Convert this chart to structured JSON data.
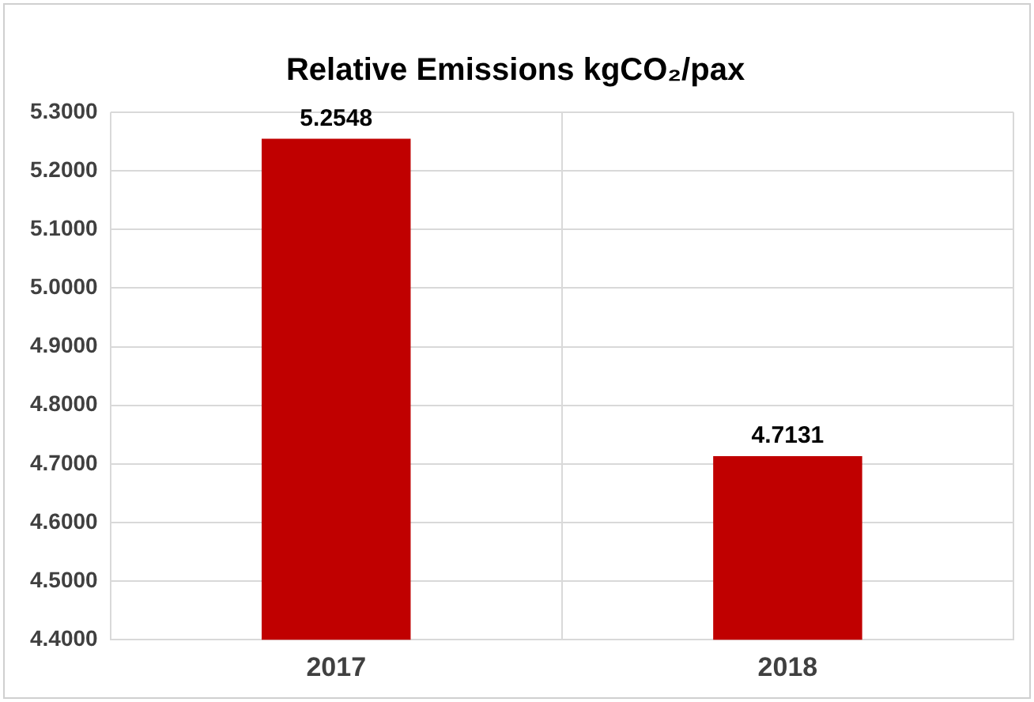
{
  "chart_data": {
    "type": "bar",
    "title": "Relative Emissions kgCO₂/pax",
    "categories": [
      "2017",
      "2018"
    ],
    "values": [
      5.2548,
      4.7131
    ],
    "color": "#c00000",
    "ylim": [
      4.4,
      5.3
    ],
    "yticks": [
      {
        "value": 4.4,
        "label": "4.4000"
      },
      {
        "value": 4.5,
        "label": "4.5000"
      },
      {
        "value": 4.6,
        "label": "4.6000"
      },
      {
        "value": 4.7,
        "label": "4.7000"
      },
      {
        "value": 4.8,
        "label": "4.8000"
      },
      {
        "value": 4.9,
        "label": "4.9000"
      },
      {
        "value": 5.0,
        "label": "5.0000"
      },
      {
        "value": 5.1,
        "label": "5.1000"
      },
      {
        "value": 5.2,
        "label": "5.2000"
      },
      {
        "value": 5.3,
        "label": "5.3000"
      }
    ],
    "grid": true,
    "legend": false,
    "data_labels": true
  }
}
